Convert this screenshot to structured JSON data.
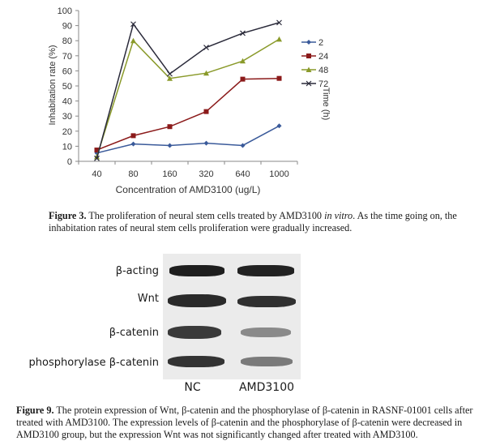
{
  "figure3": {
    "caption_label": "Figure 3.",
    "caption_text_a": "The proliferation of neural stem cells treated by AMD3100 ",
    "caption_italic": "in vitro",
    "caption_text_b": ". As the time going on, the inhabitation rates of neural stem cells proliferation were gradually increased."
  },
  "chart_data": {
    "type": "line",
    "title": "",
    "xlabel": "Concentration of AMD3100 (ug/L)",
    "ylabel": "Inhabitation rate (%)",
    "legend_title": "Time (h)",
    "legend_position": "right",
    "categories": [
      "40",
      "80",
      "160",
      "320",
      "640",
      "1000"
    ],
    "ylim": [
      0,
      100
    ],
    "yticks": [
      0,
      10,
      20,
      30,
      40,
      50,
      60,
      70,
      80,
      90,
      100
    ],
    "grid": false,
    "series": [
      {
        "name": "2",
        "color": "#3a5a9a",
        "marker": "diamond",
        "values": [
          5.5,
          11.5,
          10.5,
          12,
          10.5,
          23.5
        ]
      },
      {
        "name": "24",
        "color": "#8b1a1a",
        "marker": "square",
        "values": [
          7.5,
          17,
          23,
          33,
          54.5,
          55
        ]
      },
      {
        "name": "48",
        "color": "#8a9a2a",
        "marker": "triangle",
        "values": [
          3,
          80,
          55,
          58.5,
          66.5,
          81
        ]
      },
      {
        "name": "72",
        "color": "#2a2a3a",
        "marker": "x",
        "values": [
          2,
          91,
          58,
          75.5,
          85,
          92
        ]
      }
    ]
  },
  "figure9": {
    "row_labels": [
      "β-acting",
      "Wnt",
      "β-catenin",
      "phosphorylase β-catenin"
    ],
    "lane_labels": [
      "NC",
      "AMD3100"
    ],
    "caption_label": "Figure 9.",
    "caption_text": "The protein expression of Wnt, β-catenin and the phosphorylase of β-catenin in RASNF-01001 cells after treated with AMD3100. The expression levels of β-catenin and the phosphorylase of β-catenin were decreased in AMD3100 group, but the expression Wnt was not significantly changed after treated with AMD3100."
  }
}
